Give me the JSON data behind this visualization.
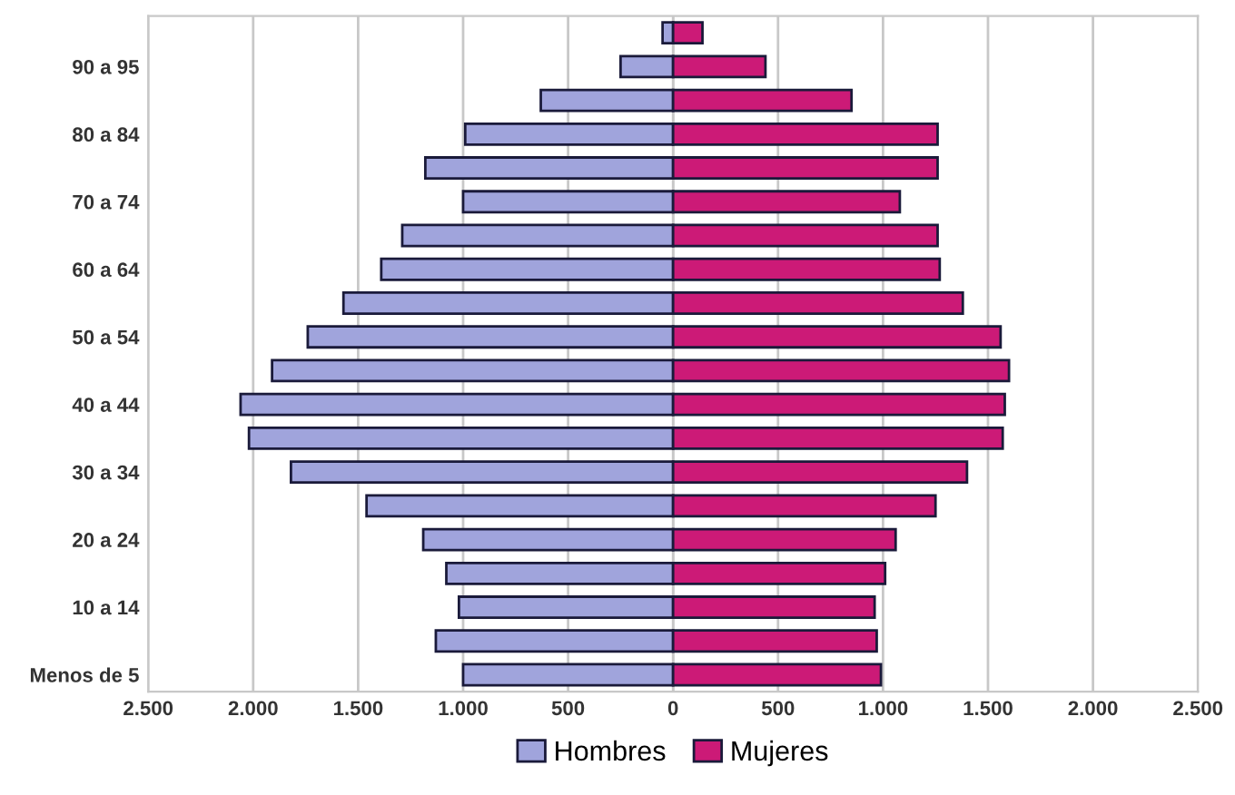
{
  "chart_data": {
    "type": "bar",
    "orientation": "horizontal",
    "stacked": true,
    "categories": [
      null,
      "90 a 95",
      null,
      "80 a 84",
      null,
      "70 a 74",
      null,
      "60 a 64",
      null,
      "50 a 54",
      null,
      "40 a 44",
      null,
      "30 a 34",
      null,
      "20 a 24",
      null,
      "10 a 14",
      null,
      "Menos de 5"
    ],
    "series": [
      {
        "name": "Hombres",
        "color": "#a0a4dc",
        "values": [
          -50,
          -250,
          -630,
          -990,
          -1180,
          -1000,
          -1290,
          -1390,
          -1570,
          -1740,
          -1910,
          -2060,
          -2020,
          -1820,
          -1460,
          -1190,
          -1080,
          -1020,
          -1130,
          -1000
        ]
      },
      {
        "name": "Mujeres",
        "color": "#cc1a77",
        "values": [
          140,
          440,
          850,
          1260,
          1260,
          1080,
          1260,
          1270,
          1380,
          1560,
          1600,
          1580,
          1570,
          1400,
          1250,
          1060,
          1010,
          960,
          970,
          990
        ]
      }
    ],
    "xlim": [
      -2500,
      2500
    ],
    "xticks": [
      {
        "value": -2500,
        "label": "2.500"
      },
      {
        "value": -2000,
        "label": "2.000"
      },
      {
        "value": -1500,
        "label": "1.500"
      },
      {
        "value": -1000,
        "label": "1.000"
      },
      {
        "value": -500,
        "label": "500"
      },
      0,
      500,
      {
        "value": 1000,
        "label": "1.000"
      },
      {
        "value": 1500,
        "label": "1.500"
      },
      {
        "value": 2000,
        "label": "2.000"
      },
      {
        "value": 2500,
        "label": "2.500"
      }
    ],
    "grid": "x",
    "legend": "bottom"
  }
}
